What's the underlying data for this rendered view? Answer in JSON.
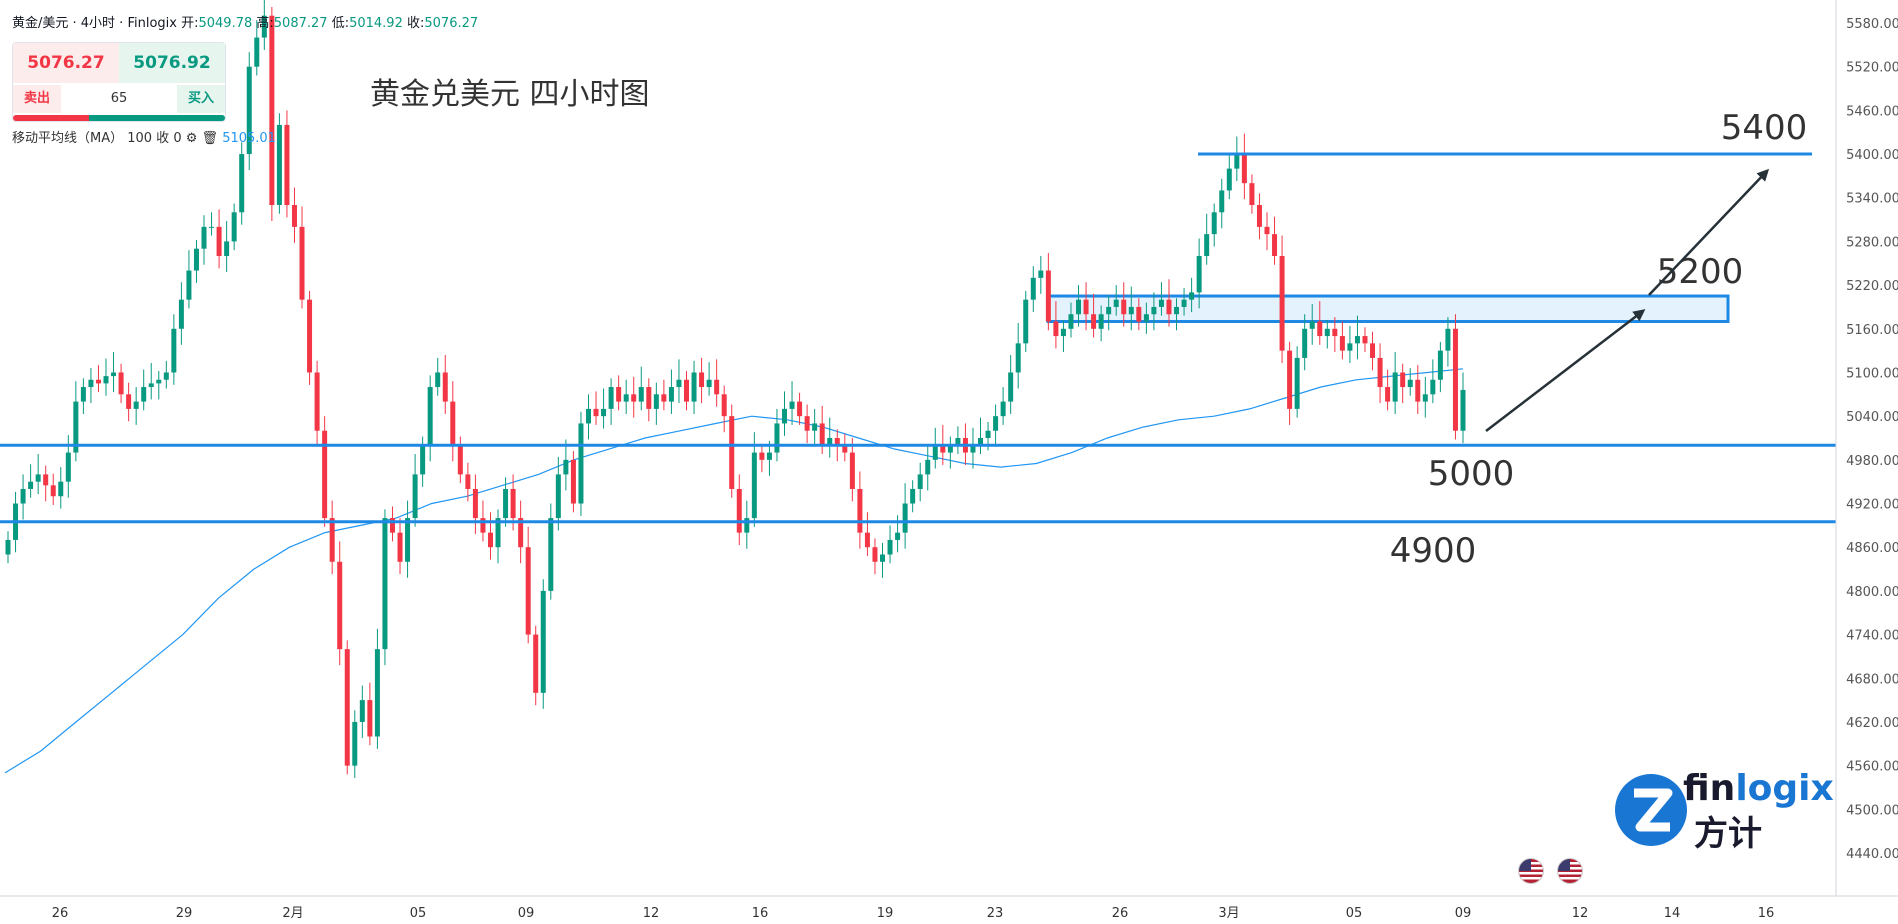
{
  "header": {
    "symbol": "黄金/美元 · 4小时 · Finlogix",
    "open_label": "开:",
    "open_value": "5049.78",
    "high_label": "高:",
    "high_value": "5087.27",
    "low_label": "低:",
    "low_value": "5014.92",
    "close_label": "收:",
    "close_value": "5076.27"
  },
  "trade_panel": {
    "sell_price": "5076.27",
    "buy_price": "5076.92",
    "sell_label": "卖出",
    "buy_label": "买入",
    "quantity": "65"
  },
  "ma_legend": {
    "text": "移动平均线（MA） 100 收 0",
    "value": "5105.01"
  },
  "colors": {
    "up": "#089981",
    "down": "#f23645",
    "ma": "#2196f3",
    "levels": "#1e88e5",
    "zone_fill": "#e3f2fd"
  },
  "logo": {
    "text_prefix": "fin",
    "text_suffix": "logix",
    "sub_text": "方计",
    "icon": "finlogix-z-logo-icon"
  },
  "chart_data": {
    "type": "candlestick",
    "title": "黄金兑美元 四小时图",
    "y_axis": {
      "ylim": [
        4410,
        5600
      ],
      "ticks": [
        "5580.00",
        "5520.00",
        "5460.00",
        "5400.00",
        "5340.00",
        "5280.00",
        "5220.00",
        "5160.00",
        "5100.00",
        "5040.00",
        "4980.00",
        "4920.00",
        "4860.00",
        "4800.00",
        "4740.00",
        "4680.00",
        "4620.00",
        "4560.00",
        "4500.00",
        "4440.00"
      ],
      "side": "right"
    },
    "x_axis": {
      "ticks": [
        "26",
        "29",
        "2月",
        "05",
        "09",
        "12",
        "16",
        "19",
        "23",
        "26",
        "3月",
        "05",
        "09",
        "12",
        "14",
        "16"
      ]
    },
    "levels": [
      {
        "label": "5400",
        "value": 5400
      },
      {
        "label": "5000",
        "value": 5000
      },
      {
        "label": "4900",
        "value": 4895
      }
    ],
    "zone": {
      "label": "5200",
      "low": 5170,
      "high": 5205
    },
    "candles_close": [
      4870,
      4920,
      4940,
      4950,
      4960,
      4945,
      4930,
      4950,
      4990,
      5060,
      5080,
      5090,
      5085,
      5095,
      5100,
      5070,
      5050,
      5060,
      5080,
      5085,
      5090,
      5100,
      5160,
      5200,
      5240,
      5270,
      5300,
      5300,
      5260,
      5280,
      5320,
      5400,
      5520,
      5560,
      5590,
      5330,
      5440,
      5330,
      5300,
      5200,
      5100,
      5020,
      4900,
      4840,
      4720,
      4560,
      4620,
      4650,
      4600,
      4720,
      4900,
      4880,
      4840,
      4900,
      4960,
      5000,
      5080,
      5100,
      5060,
      5000,
      4960,
      4940,
      4900,
      4880,
      4860,
      4900,
      4940,
      4900,
      4860,
      4740,
      4660,
      4800,
      4900,
      4960,
      4980,
      4920,
      5030,
      5050,
      5040,
      5050,
      5080,
      5060,
      5070,
      5060,
      5080,
      5050,
      5070,
      5060,
      5080,
      5090,
      5060,
      5100,
      5080,
      5090,
      5070,
      5040,
      4940,
      4880,
      4900,
      4990,
      4980,
      4990,
      5030,
      5050,
      5060,
      5040,
      5020,
      5030,
      5000,
      5010,
      5000,
      4990,
      4940,
      4880,
      4860,
      4840,
      4850,
      4870,
      4880,
      4920,
      4940,
      4960,
      4980,
      5000,
      4990,
      5000,
      5010,
      4990,
      5000,
      5010,
      5020,
      5040,
      5060,
      5100,
      5140,
      5200,
      5230,
      5240,
      5170,
      5150,
      5160,
      5180,
      5200,
      5180,
      5160,
      5180,
      5190,
      5200,
      5180,
      5190,
      5170,
      5180,
      5190,
      5200,
      5180,
      5190,
      5200,
      5210,
      5260,
      5290,
      5320,
      5350,
      5380,
      5400,
      5360,
      5330,
      5300,
      5290,
      5260,
      5130,
      5050,
      5120,
      5160,
      5170,
      5150,
      5160,
      5150,
      5130,
      5140,
      5150,
      5140,
      5120,
      5080,
      5060,
      5100,
      5080,
      5090,
      5060,
      5070,
      5090,
      5130,
      5160,
      5020,
      5076
    ],
    "ma_100": [
      4550,
      4580,
      4620,
      4660,
      4700,
      4740,
      4790,
      4830,
      4860,
      4880,
      4890,
      4900,
      4920,
      4930,
      4945,
      4960,
      4980,
      4995,
      5010,
      5020,
      5030,
      5040,
      5035,
      5025,
      5010,
      4995,
      4985,
      4975,
      4970,
      4975,
      4990,
      5010,
      5025,
      5035,
      5040,
      5050,
      5065,
      5080,
      5090,
      5095,
      5100,
      5105
    ],
    "arrows": [
      {
        "from_date": "3月 09",
        "from_value": 5010,
        "to_date": "3月 13",
        "to_value": 5180
      },
      {
        "from_date": "3月 13",
        "from_value": 5190,
        "to_date": "3月 15",
        "to_value": 5380
      }
    ]
  }
}
